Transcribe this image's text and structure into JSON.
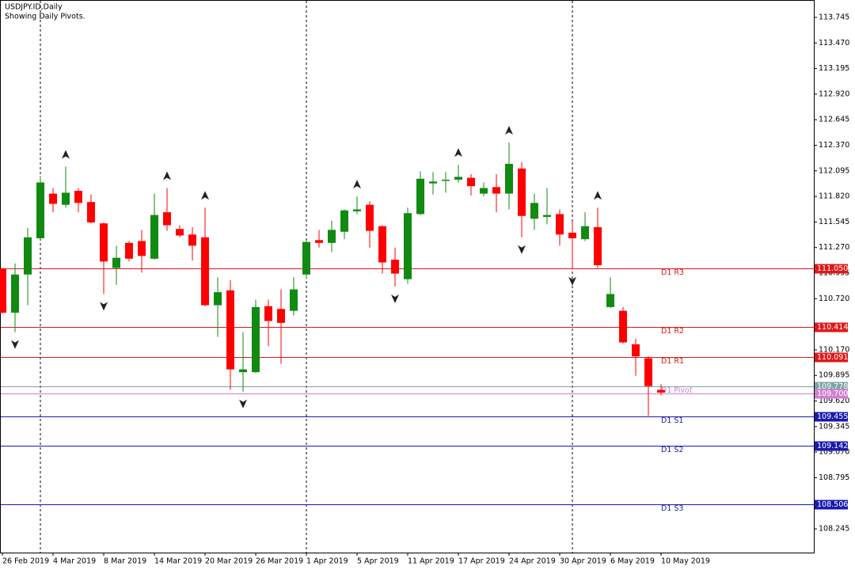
{
  "chart_data": {
    "type": "candlestick",
    "title": "USDJPY.ID,Daily",
    "subtitle": "Showing Daily Pivots.",
    "categories": [
      "26 Feb 2019",
      null,
      null,
      null,
      "4 Mar 2019",
      null,
      null,
      null,
      "8 Mar 2019",
      null,
      null,
      null,
      "14 Mar 2019",
      null,
      null,
      null,
      "20 Mar 2019",
      null,
      null,
      null,
      "26 Mar 2019",
      null,
      null,
      null,
      "1 Apr 2019",
      null,
      null,
      null,
      "5 Apr 2019",
      null,
      null,
      null,
      "11 Apr 2019",
      null,
      null,
      null,
      "17 Apr 2019",
      null,
      null,
      null,
      "24 Apr 2019",
      null,
      null,
      null,
      "30 Apr 2019",
      null,
      null,
      null,
      "6 May 2019",
      null,
      null,
      null,
      "10 May 2019"
    ],
    "open": [
      111.04,
      110.57,
      110.98,
      111.37,
      111.85,
      111.73,
      111.88,
      111.76,
      111.53,
      111.05,
      111.32,
      111.34,
      111.15,
      111.65,
      111.47,
      111.41,
      111.38,
      110.65,
      110.81,
      109.93,
      109.93,
      110.64,
      110.61,
      110.59,
      110.98,
      111.35,
      111.32,
      111.44,
      111.66,
      111.73,
      111.5,
      111.14,
      110.93,
      111.63,
      111.96,
      111.99,
      112.0,
      112.02,
      111.85,
      111.92,
      111.85,
      112.12,
      111.58,
      111.6,
      111.63,
      111.43,
      111.36,
      111.49,
      110.63,
      110.59,
      110.23,
      110.08,
      109.74
    ],
    "high": [
      111.05,
      111.1,
      111.48,
      112.04,
      111.91,
      112.14,
      111.91,
      111.84,
      111.54,
      111.29,
      111.34,
      111.46,
      111.85,
      111.91,
      111.51,
      111.49,
      111.7,
      110.95,
      110.92,
      110.36,
      110.71,
      110.71,
      110.82,
      110.95,
      111.34,
      111.46,
      111.56,
      111.68,
      111.82,
      111.77,
      111.51,
      111.27,
      111.7,
      112.09,
      112.08,
      112.08,
      112.16,
      112.06,
      111.97,
      112.06,
      112.4,
      112.19,
      111.85,
      111.91,
      111.68,
      111.55,
      111.65,
      111.7,
      110.95,
      110.63,
      110.29,
      110.1,
      109.8
    ],
    "low": [
      110.56,
      110.36,
      110.65,
      111.36,
      111.65,
      111.7,
      111.65,
      111.53,
      110.77,
      110.87,
      111.12,
      111.0,
      111.14,
      111.45,
      111.38,
      111.13,
      110.64,
      110.31,
      109.74,
      109.72,
      109.92,
      110.21,
      110.02,
      110.54,
      110.93,
      111.27,
      111.22,
      111.36,
      111.63,
      111.27,
      110.99,
      110.85,
      110.88,
      111.62,
      111.84,
      111.86,
      111.97,
      111.83,
      111.82,
      111.65,
      111.68,
      111.38,
      111.46,
      111.52,
      111.29,
      111.04,
      111.34,
      111.05,
      110.62,
      110.24,
      109.89,
      109.46,
      109.68
    ],
    "close": [
      110.57,
      110.98,
      111.38,
      111.97,
      111.74,
      111.86,
      111.75,
      111.54,
      111.12,
      111.16,
      111.15,
      111.18,
      111.62,
      111.51,
      111.4,
      111.29,
      110.65,
      110.79,
      109.96,
      109.96,
      110.63,
      110.48,
      110.46,
      110.82,
      111.33,
      111.32,
      111.46,
      111.67,
      111.68,
      111.45,
      111.11,
      110.99,
      111.64,
      112.01,
      111.98,
      112.0,
      112.03,
      111.93,
      111.91,
      111.85,
      112.17,
      111.61,
      111.75,
      111.62,
      111.41,
      111.37,
      111.5,
      111.08,
      110.77,
      110.25,
      110.1,
      109.78,
      109.71
    ],
    "up_color": "#118a11",
    "down_color": "#ff0000",
    "fractals_up": [
      5,
      13,
      16,
      28,
      36,
      40,
      47
    ],
    "fractals_down": [
      1,
      8,
      19,
      31,
      41,
      45
    ],
    "ylim": [
      107.99,
      113.932
    ],
    "yticks": [
      {
        "value": 113.745,
        "label": "113.745"
      },
      {
        "value": 113.47,
        "label": "113.470"
      },
      {
        "value": 113.195,
        "label": "113.195"
      },
      {
        "value": 112.92,
        "label": "112.920"
      },
      {
        "value": 112.645,
        "label": "112.645"
      },
      {
        "value": 112.37,
        "label": "112.370"
      },
      {
        "value": 112.095,
        "label": "112.095"
      },
      {
        "value": 111.82,
        "label": "111.820"
      },
      {
        "value": 111.545,
        "label": "111.545"
      },
      {
        "value": 111.27,
        "label": "111.270"
      },
      {
        "value": 110.995,
        "label": "110.995"
      },
      {
        "value": 110.72,
        "label": "110.720"
      },
      {
        "value": 110.17,
        "label": "110.170"
      },
      {
        "value": 109.895,
        "label": "109.895"
      },
      {
        "value": 109.62,
        "label": "109.620"
      },
      {
        "value": 109.345,
        "label": "109.345"
      },
      {
        "value": 109.07,
        "label": "109.070"
      },
      {
        "value": 108.795,
        "label": "108.795"
      },
      {
        "value": 108.245,
        "label": "108.245"
      }
    ],
    "current_price": {
      "value": 109.778,
      "label": "109.778",
      "color": "#7fa3a3"
    },
    "levels": [
      {
        "name": "D1 R3",
        "value": 111.05,
        "label": "111.050",
        "color": "#e01818"
      },
      {
        "name": "D1 R2",
        "value": 110.414,
        "label": "110.414",
        "color": "#e01818"
      },
      {
        "name": "D1 R1",
        "value": 110.091,
        "label": "110.091",
        "color": "#e01818"
      },
      {
        "name": "D1 Pivot",
        "value": 109.7,
        "label": "109.700",
        "color": "#d080d0"
      },
      {
        "name": "D1 S1",
        "value": 109.455,
        "label": "109.455",
        "color": "#1a1ab0"
      },
      {
        "name": "D1 S2",
        "value": 109.142,
        "label": "109.142",
        "color": "#1a1ab0"
      },
      {
        "name": "D1 S3",
        "value": 108.506,
        "label": "108.506",
        "color": "#1a1ab0"
      }
    ]
  }
}
